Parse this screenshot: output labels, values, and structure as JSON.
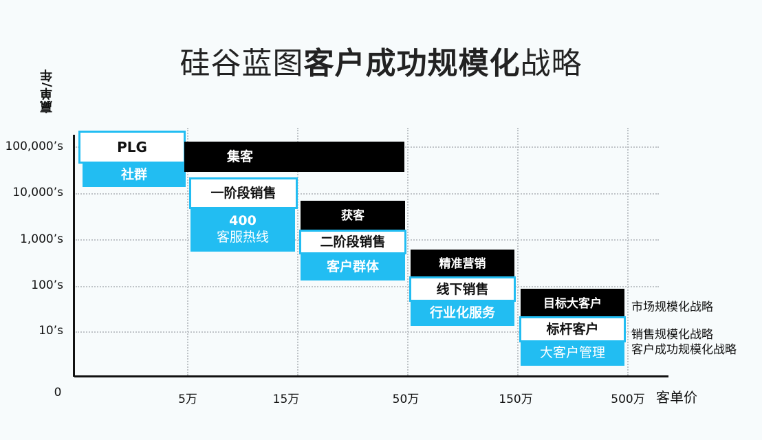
{
  "title": {
    "part1": "硅谷蓝图",
    "part2": "客户成功规模化",
    "part3": "战略"
  },
  "y_axis": {
    "label": "赢单/年",
    "ticks": [
      "100,000’s",
      "10,000’s",
      "1,000’s",
      "100’s",
      "10’s"
    ]
  },
  "x_axis": {
    "origin": "0",
    "ticks": [
      "5万",
      "15万",
      "50万",
      "150万",
      "500万"
    ],
    "label": "客单价"
  },
  "boxes": {
    "plg": "PLG",
    "community": "社群",
    "jike": "集客",
    "stage1_sales": "一阶段销售",
    "hotline_num": "400",
    "hotline": "客服热线",
    "huoke": "获客",
    "stage2_sales": "二阶段销售",
    "customer_group": "客户群体",
    "precision_marketing": "精准营销",
    "offline_sales": "线下销售",
    "industry_service": "行业化服务",
    "target_accounts": "目标大客户",
    "benchmark_customer": "标杆客户",
    "key_account_mgmt": "大客户管理"
  },
  "legend": {
    "market": "市场规模化战略",
    "sales": "销售规模化战略",
    "success": "客户成功规模化战略"
  },
  "colors": {
    "blue": "#22bdf2",
    "black": "#000000",
    "axis": "#111111"
  }
}
